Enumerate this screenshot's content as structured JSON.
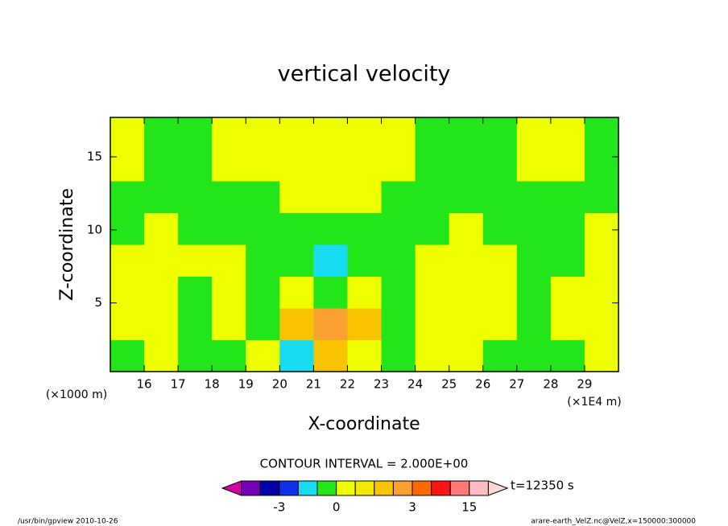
{
  "chart_data": {
    "type": "contour",
    "title": "vertical velocity",
    "x_label": "X-coordinate",
    "y_label": "Z-coordinate",
    "x_unit": "(×1E4 m)",
    "y_unit": "(×1000 m)",
    "xlim": [
      15,
      30
    ],
    "ylim": [
      0.3,
      17.7
    ],
    "xticks": [
      16,
      17,
      18,
      19,
      20,
      21,
      22,
      23,
      24,
      25,
      26,
      27,
      28,
      29
    ],
    "yticks": [
      5,
      10,
      15
    ],
    "x": [
      15.5,
      16.5,
      17.5,
      18.5,
      19.5,
      20.5,
      21.5,
      22.5,
      23.5,
      24.5,
      25.5,
      26.5,
      27.5,
      28.5,
      29.5
    ],
    "y": [
      1.39,
      3.56,
      5.74,
      7.91,
      10.09,
      12.26,
      14.44,
      16.61
    ],
    "z": [
      [
        -0.5,
        0.3,
        -0.5,
        -0.5,
        0.3,
        -1.5,
        1.5,
        0.3,
        -0.5,
        0.3,
        0.3,
        -0.5,
        -0.5,
        -0.5,
        0.3
      ],
      [
        0.3,
        0.3,
        -0.5,
        0.3,
        -0.5,
        1.5,
        2.5,
        1.5,
        -0.5,
        0.3,
        0.3,
        0.3,
        -0.5,
        0.3,
        0.3
      ],
      [
        0.3,
        0.3,
        -0.5,
        0.3,
        -0.5,
        0.3,
        -0.5,
        0.3,
        -0.5,
        0.3,
        0.3,
        0.3,
        -0.5,
        0.3,
        0.3
      ],
      [
        0.3,
        0.3,
        0.3,
        0.3,
        -0.5,
        -0.5,
        -1.5,
        -0.5,
        -0.5,
        0.3,
        0.3,
        0.3,
        -0.5,
        -0.5,
        0.3
      ],
      [
        -0.5,
        0.3,
        -0.5,
        -0.5,
        -0.5,
        -0.5,
        -0.5,
        -0.5,
        -0.5,
        -0.5,
        0.3,
        -0.5,
        -0.5,
        -0.5,
        0.3
      ],
      [
        -0.5,
        -0.5,
        -0.5,
        -0.5,
        -0.5,
        0.3,
        0.3,
        0.3,
        -0.5,
        -0.5,
        -0.5,
        -0.5,
        -0.5,
        -0.5,
        -0.5
      ],
      [
        0.3,
        -0.5,
        -0.5,
        0.3,
        0.3,
        0.3,
        0.3,
        0.3,
        0.3,
        -0.5,
        -0.5,
        -0.5,
        0.3,
        0.3,
        -0.5
      ],
      [
        0.3,
        -0.5,
        -0.5,
        0.3,
        0.3,
        0.3,
        0.3,
        0.3,
        0.3,
        -0.5,
        -0.5,
        -0.5,
        0.3,
        0.3,
        -0.5
      ]
    ],
    "colorbar": {
      "title": "CONTOUR INTERVAL = 2.000E+00",
      "levels": [
        -7,
        -5,
        -3,
        -2,
        -1,
        0,
        0.5,
        1,
        2,
        3,
        7,
        11,
        15,
        19
      ],
      "colors": [
        "#d400a8",
        "#7400b8",
        "#0000a8",
        "#1030e8",
        "#18dcf0",
        "#22e61a",
        "#eeff00",
        "#f2e800",
        "#f8c400",
        "#f8a030",
        "#ff6800",
        "#ff1414",
        "#ff7878",
        "#ffbcc4",
        "#ffd8d0"
      ],
      "ticks": [
        -3,
        0,
        3,
        15
      ]
    },
    "time_label": "t=12350 s",
    "footer_left": "/usr/bin/gpview  2010-10-26",
    "footer_right": "arare-earth_VelZ.nc@VelZ,x=150000:300000"
  }
}
